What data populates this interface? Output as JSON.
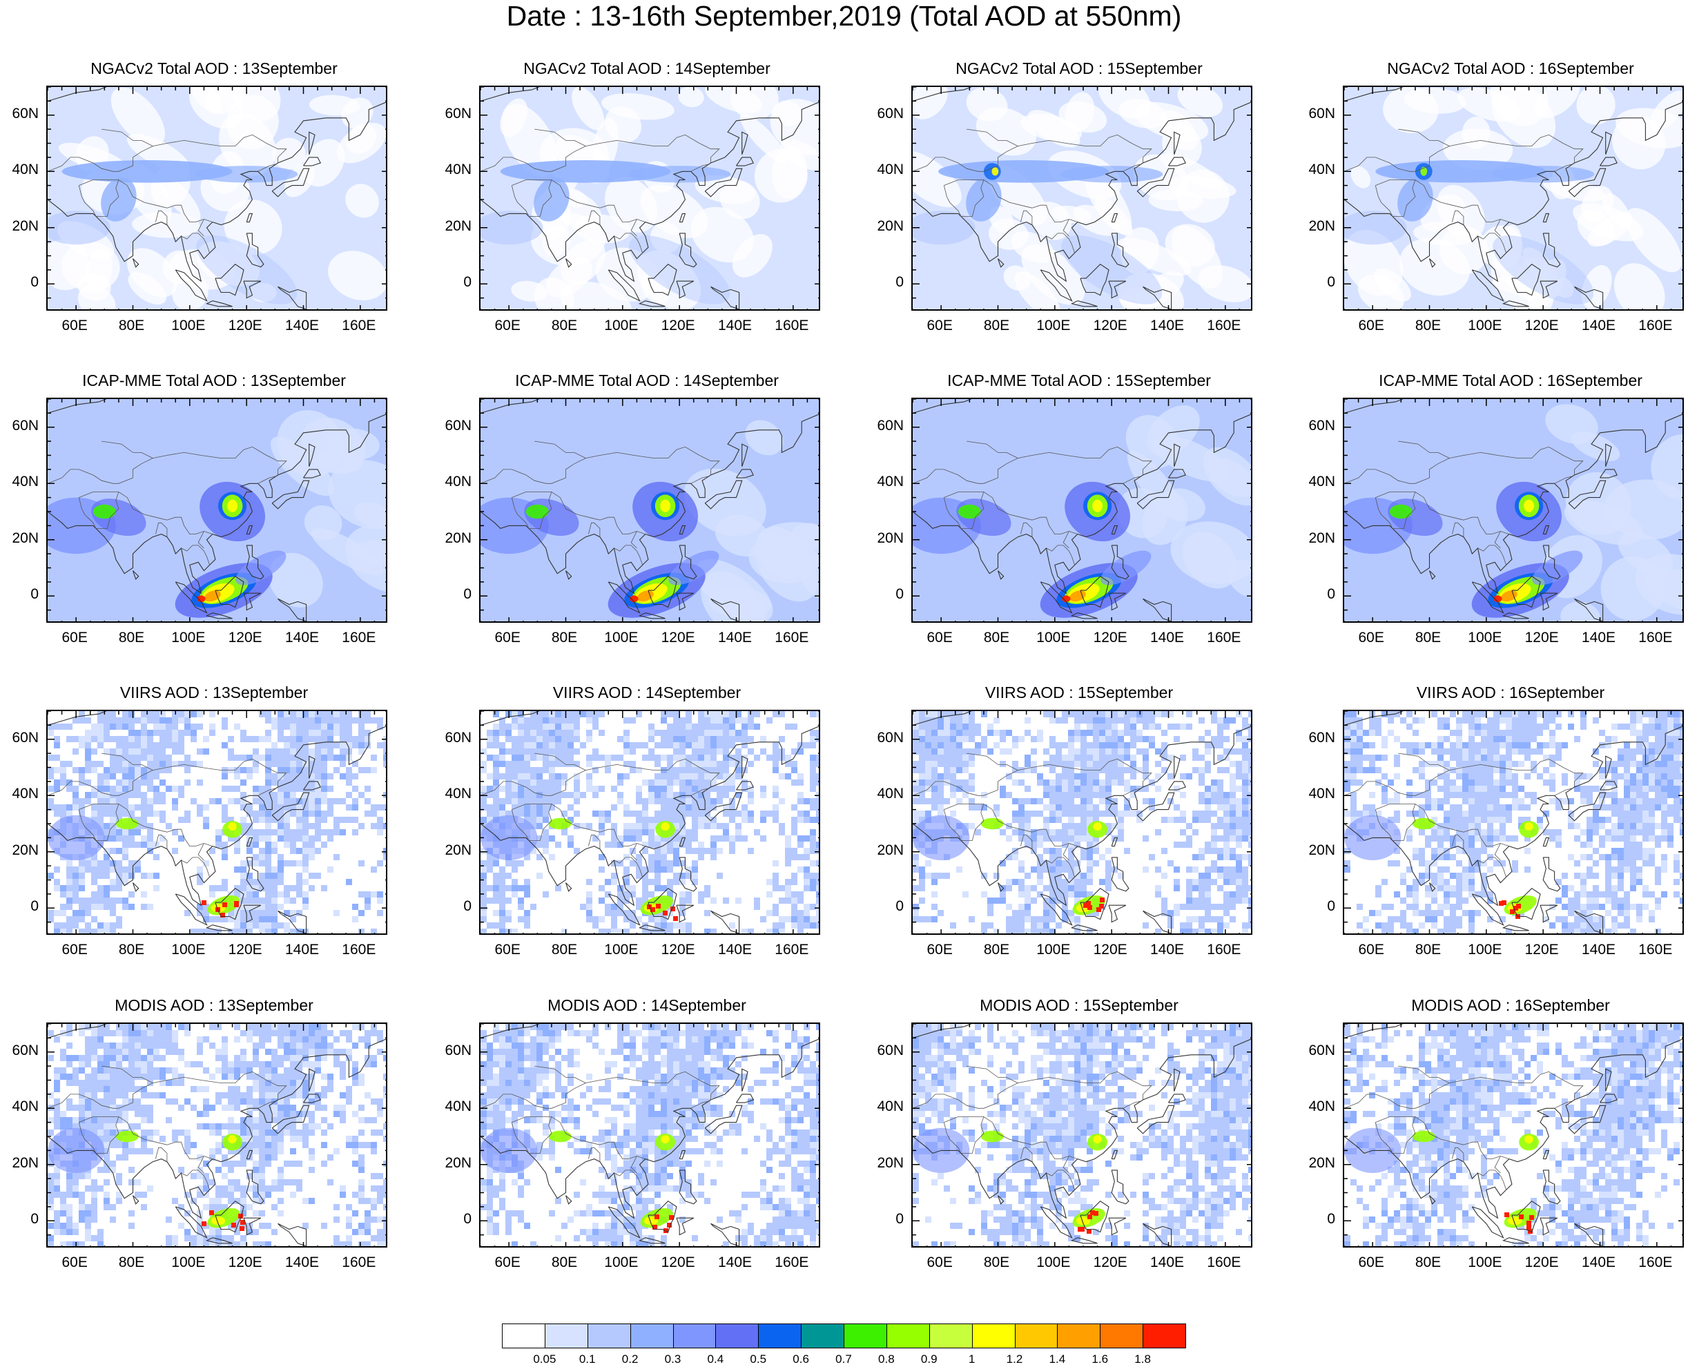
{
  "figure": {
    "title": "Date : 13-16th September,2019 (Total AOD at 550nm)"
  },
  "axes": {
    "lat_labels": [
      "60N",
      "40N",
      "20N",
      "0"
    ],
    "lat_values": [
      60,
      40,
      20,
      0
    ],
    "lon_labels": [
      "60E",
      "80E",
      "100E",
      "120E",
      "140E",
      "160E"
    ],
    "lon_values": [
      60,
      80,
      100,
      120,
      140,
      160
    ],
    "lat_range": [
      -10,
      70
    ],
    "lon_range": [
      50,
      170
    ]
  },
  "rows": [
    {
      "source": "NGACv2",
      "panels": [
        {
          "title": "NGACv2 Total AOD : 13September"
        },
        {
          "title": "NGACv2 Total AOD : 14September"
        },
        {
          "title": "NGACv2 Total AOD : 15September"
        },
        {
          "title": "NGACv2 Total AOD : 16September"
        }
      ]
    },
    {
      "source": "ICAP-MME",
      "panels": [
        {
          "title": "ICAP-MME Total AOD : 13September"
        },
        {
          "title": "ICAP-MME Total AOD : 14September"
        },
        {
          "title": "ICAP-MME Total AOD : 15September"
        },
        {
          "title": "ICAP-MME Total AOD : 16September"
        }
      ]
    },
    {
      "source": "VIIRS",
      "panels": [
        {
          "title": "VIIRS AOD : 13September"
        },
        {
          "title": "VIIRS AOD : 14September"
        },
        {
          "title": "VIIRS AOD : 15September"
        },
        {
          "title": "VIIRS AOD : 16September"
        }
      ]
    },
    {
      "source": "MODIS",
      "panels": [
        {
          "title": "MODIS AOD : 13September"
        },
        {
          "title": "MODIS AOD : 14September"
        },
        {
          "title": "MODIS AOD : 15September"
        },
        {
          "title": "MODIS AOD : 16September"
        }
      ]
    }
  ],
  "colorbar": {
    "labels": [
      "0.05",
      "0.1",
      "0.2",
      "0.3",
      "0.4",
      "0.5",
      "0.6",
      "0.7",
      "0.8",
      "0.9",
      "1",
      "1.2",
      "1.4",
      "1.6",
      "1.8"
    ],
    "colors": [
      "#ffffff",
      "#d6e2ff",
      "#b5c9ff",
      "#8fb0ff",
      "#7f96ff",
      "#6270f5",
      "#0a64f0",
      "#009696",
      "#3cf000",
      "#96ff00",
      "#c8ff3c",
      "#ffff00",
      "#ffc800",
      "#ffa000",
      "#ff7800",
      "#ff1e00"
    ]
  }
}
